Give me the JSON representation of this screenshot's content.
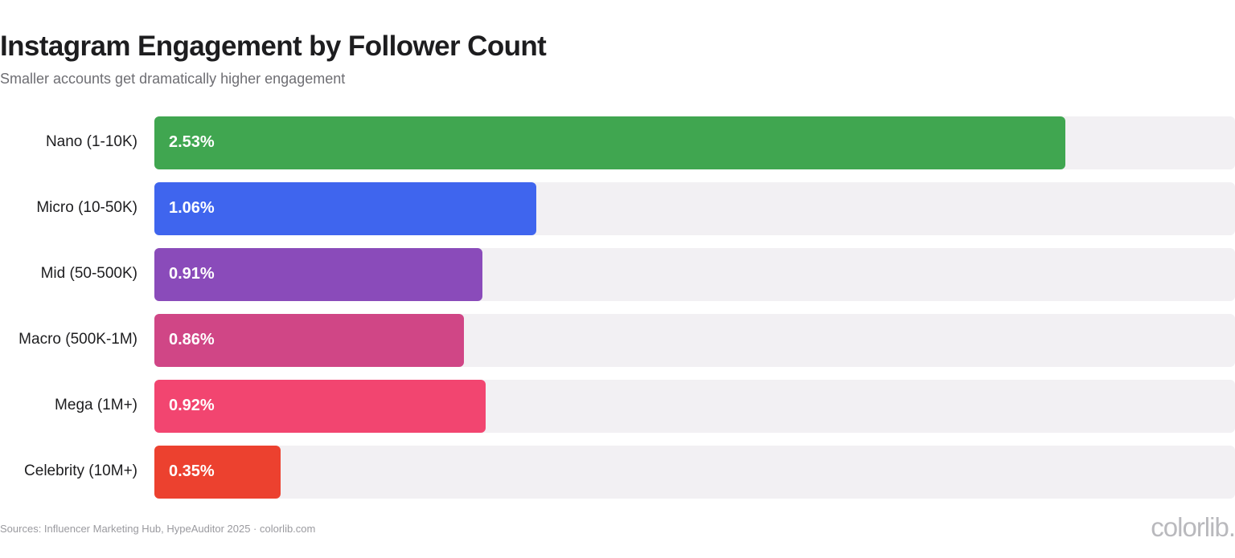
{
  "header": {
    "title": "Instagram Engagement by Follower Count",
    "subtitle": "Smaller accounts get dramatically higher engagement"
  },
  "chart_data": {
    "type": "bar",
    "orientation": "horizontal",
    "title": "Instagram Engagement by Follower Count",
    "subtitle": "Smaller accounts get dramatically higher engagement",
    "categories": [
      "Nano (1-10K)",
      "Micro (10-50K)",
      "Mid (50-500K)",
      "Macro (500K-1M)",
      "Mega (1M+)",
      "Celebrity (10M+)"
    ],
    "values": [
      2.53,
      1.06,
      0.91,
      0.86,
      0.92,
      0.35
    ],
    "value_labels": [
      "2.53%",
      "1.06%",
      "0.91%",
      "0.86%",
      "0.92%",
      "0.35%"
    ],
    "colors": [
      "#40a650",
      "#3f65ee",
      "#8a4bba",
      "#d04686",
      "#f24570",
      "#ec412f"
    ],
    "track_color": "#f2f0f3",
    "xlim": [
      0,
      3.0
    ],
    "legend": "none",
    "grid": false,
    "xlabel": "",
    "ylabel": ""
  },
  "footer": {
    "source": "Sources: Influencer Marketing Hub, HypeAuditor 2025 · colorlib.com",
    "logo_text": "colorlib."
  }
}
